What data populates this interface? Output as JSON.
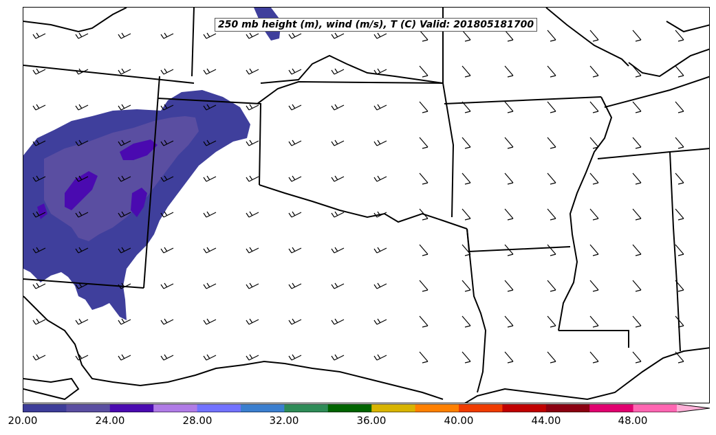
{
  "title": "250 mb height (m), wind (m/s), T (C) Valid: 201805181700",
  "colorbar": {
    "colors": [
      "#3d3d99",
      "#5a4ea1",
      "#4a0ab0",
      "#b07be6",
      "#7272ff",
      "#3b7fcf",
      "#2e8b57",
      "#006400",
      "#d8b400",
      "#ff8000",
      "#ef3b00",
      "#c00000",
      "#8b0011",
      "#e0006f",
      "#ff66b2",
      "#ffb0d8"
    ],
    "tick_labels": [
      "20.00",
      "24.00",
      "28.00",
      "32.00",
      "36.00",
      "40.00",
      "44.00",
      "48.00"
    ]
  },
  "colors": {
    "fill_outer": "#3f3f9c",
    "fill_mid": "#5a4ea1",
    "fill_inner": "#4a0ab0",
    "boundary": "#000000"
  }
}
